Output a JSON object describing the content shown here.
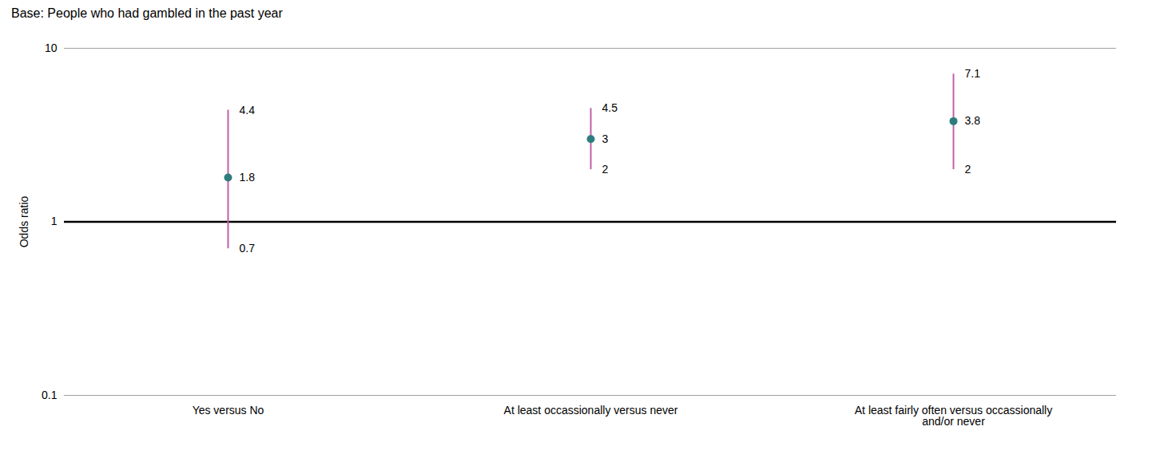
{
  "chart_data": {
    "type": "interval",
    "subtitle": "Base: People who had gambled in the past year",
    "categories": [
      "Yes versus No",
      "At least occassionally versus never",
      "At least fairly often versus occassionally\nand/or never"
    ],
    "values": [
      1.8,
      3,
      3.8
    ],
    "color": "#2e7d7d",
    "error_bars": {
      "low": [
        0.7,
        2,
        2
      ],
      "high": [
        4.4,
        4.5,
        7.1
      ],
      "color": "#c060a8"
    },
    "reference_line": 1,
    "ylabel": "Odds ratio",
    "log": "y",
    "ylim": [
      0.1,
      10
    ],
    "yticks": [
      0.1,
      1,
      10
    ],
    "grid": false,
    "data_labels": true
  }
}
